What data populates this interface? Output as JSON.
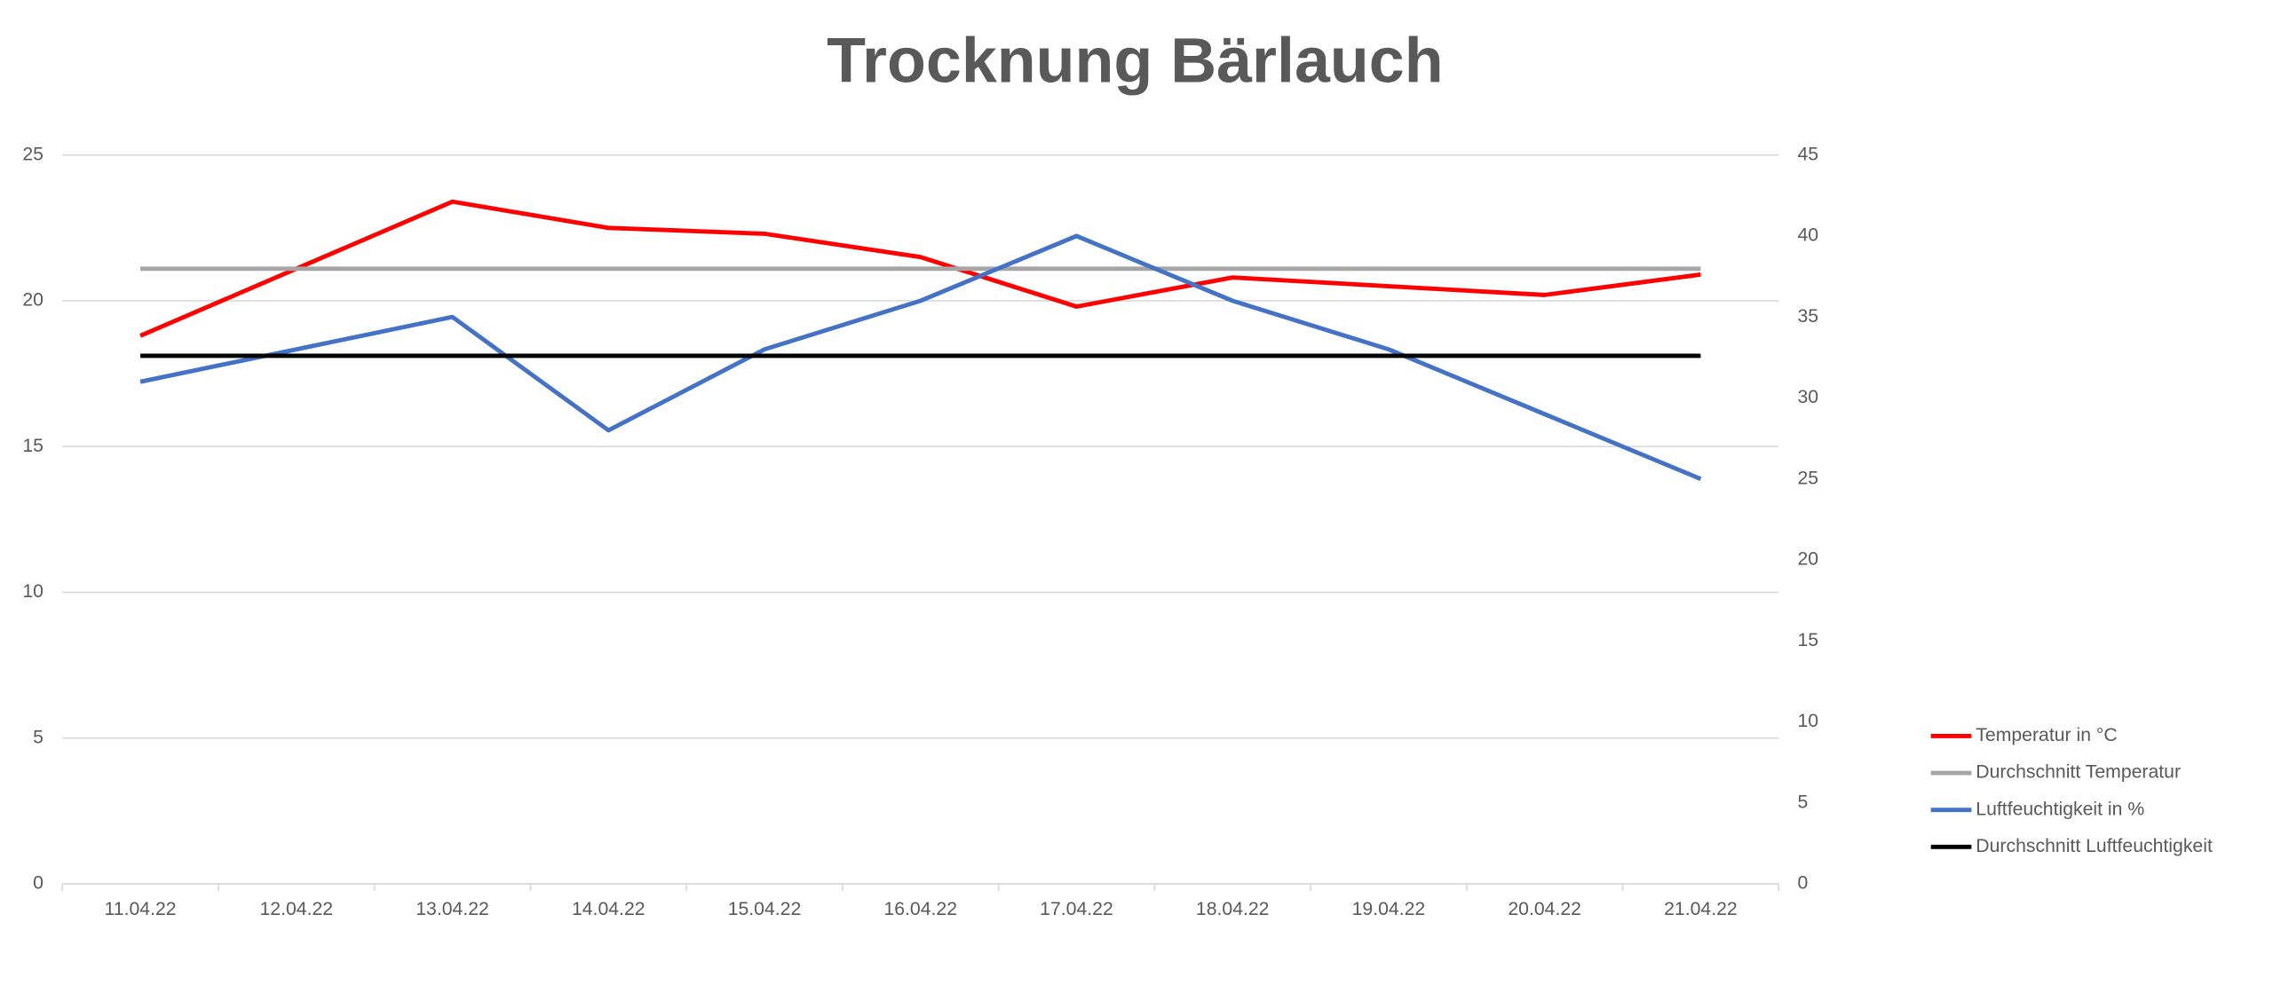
{
  "chart_data": {
    "type": "line",
    "title": "Trocknung Bärlauch",
    "categories": [
      "11.04.22",
      "12.04.22",
      "13.04.22",
      "14.04.22",
      "15.04.22",
      "16.04.22",
      "17.04.22",
      "18.04.22",
      "19.04.22",
      "20.04.22",
      "21.04.22"
    ],
    "series": [
      {
        "name": "Temperatur in °C",
        "color": "#ff0000",
        "values": [
          18.8,
          21.1,
          23.4,
          22.5,
          22.3,
          21.5,
          19.8,
          20.8,
          20.5,
          20.2,
          20.9
        ]
      },
      {
        "name": "Durchschnitt Temperatur",
        "color": "#a5a5a5",
        "values": [
          21.1,
          21.1,
          21.1,
          21.1,
          21.1,
          21.1,
          21.1,
          21.1,
          21.1,
          21.1,
          21.1
        ]
      },
      {
        "name": "Luftfeuchtigkeit in %",
        "color": "#4472c4",
        "axis": "y2",
        "values": [
          31,
          33,
          35,
          28,
          33,
          36,
          40,
          36,
          33,
          29,
          25
        ]
      },
      {
        "name": "Durchschnitt Luftfeuchtigkeit",
        "color": "#000000",
        "axis": "y2",
        "values": [
          32.6,
          32.6,
          32.6,
          32.6,
          32.6,
          32.6,
          32.6,
          32.6,
          32.6,
          32.6,
          32.6
        ]
      }
    ],
    "ylim": [
      0,
      25
    ],
    "yticks": [
      0,
      5,
      10,
      15,
      20,
      25
    ],
    "y2lim": [
      0,
      45
    ],
    "y2ticks": [
      0,
      5,
      10,
      15,
      20,
      25,
      30,
      35,
      40,
      45
    ],
    "grid": true,
    "legend": "right"
  }
}
